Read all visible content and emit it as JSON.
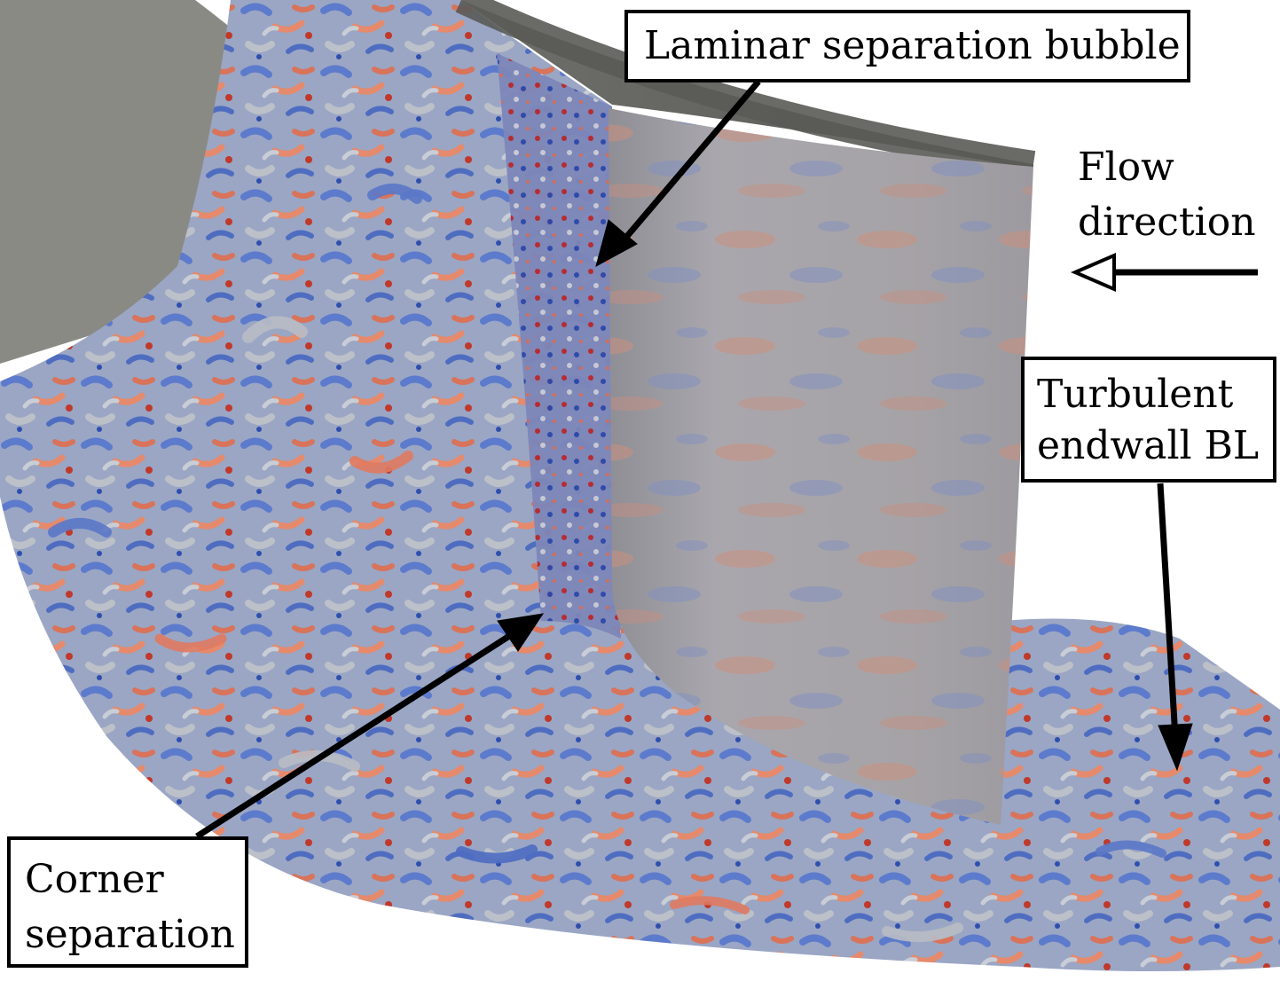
{
  "figure": {
    "labels": {
      "laminar_separation_bubble": "Laminar separation bubble",
      "flow_direction_line1": "Flow",
      "flow_direction_line2": "direction",
      "turbulent_line1": "Turbulent",
      "turbulent_line2": "endwall BL",
      "corner_line1": "Corner",
      "corner_line2": "separation"
    },
    "colors": {
      "background": "#ffffff",
      "hub_surface": "#8a8a85",
      "blade_surface": "#a3a2a6",
      "vortex_blue": "#5b78c8",
      "vortex_red": "#e07a60",
      "vortex_gray": "#b9bcc4"
    }
  }
}
